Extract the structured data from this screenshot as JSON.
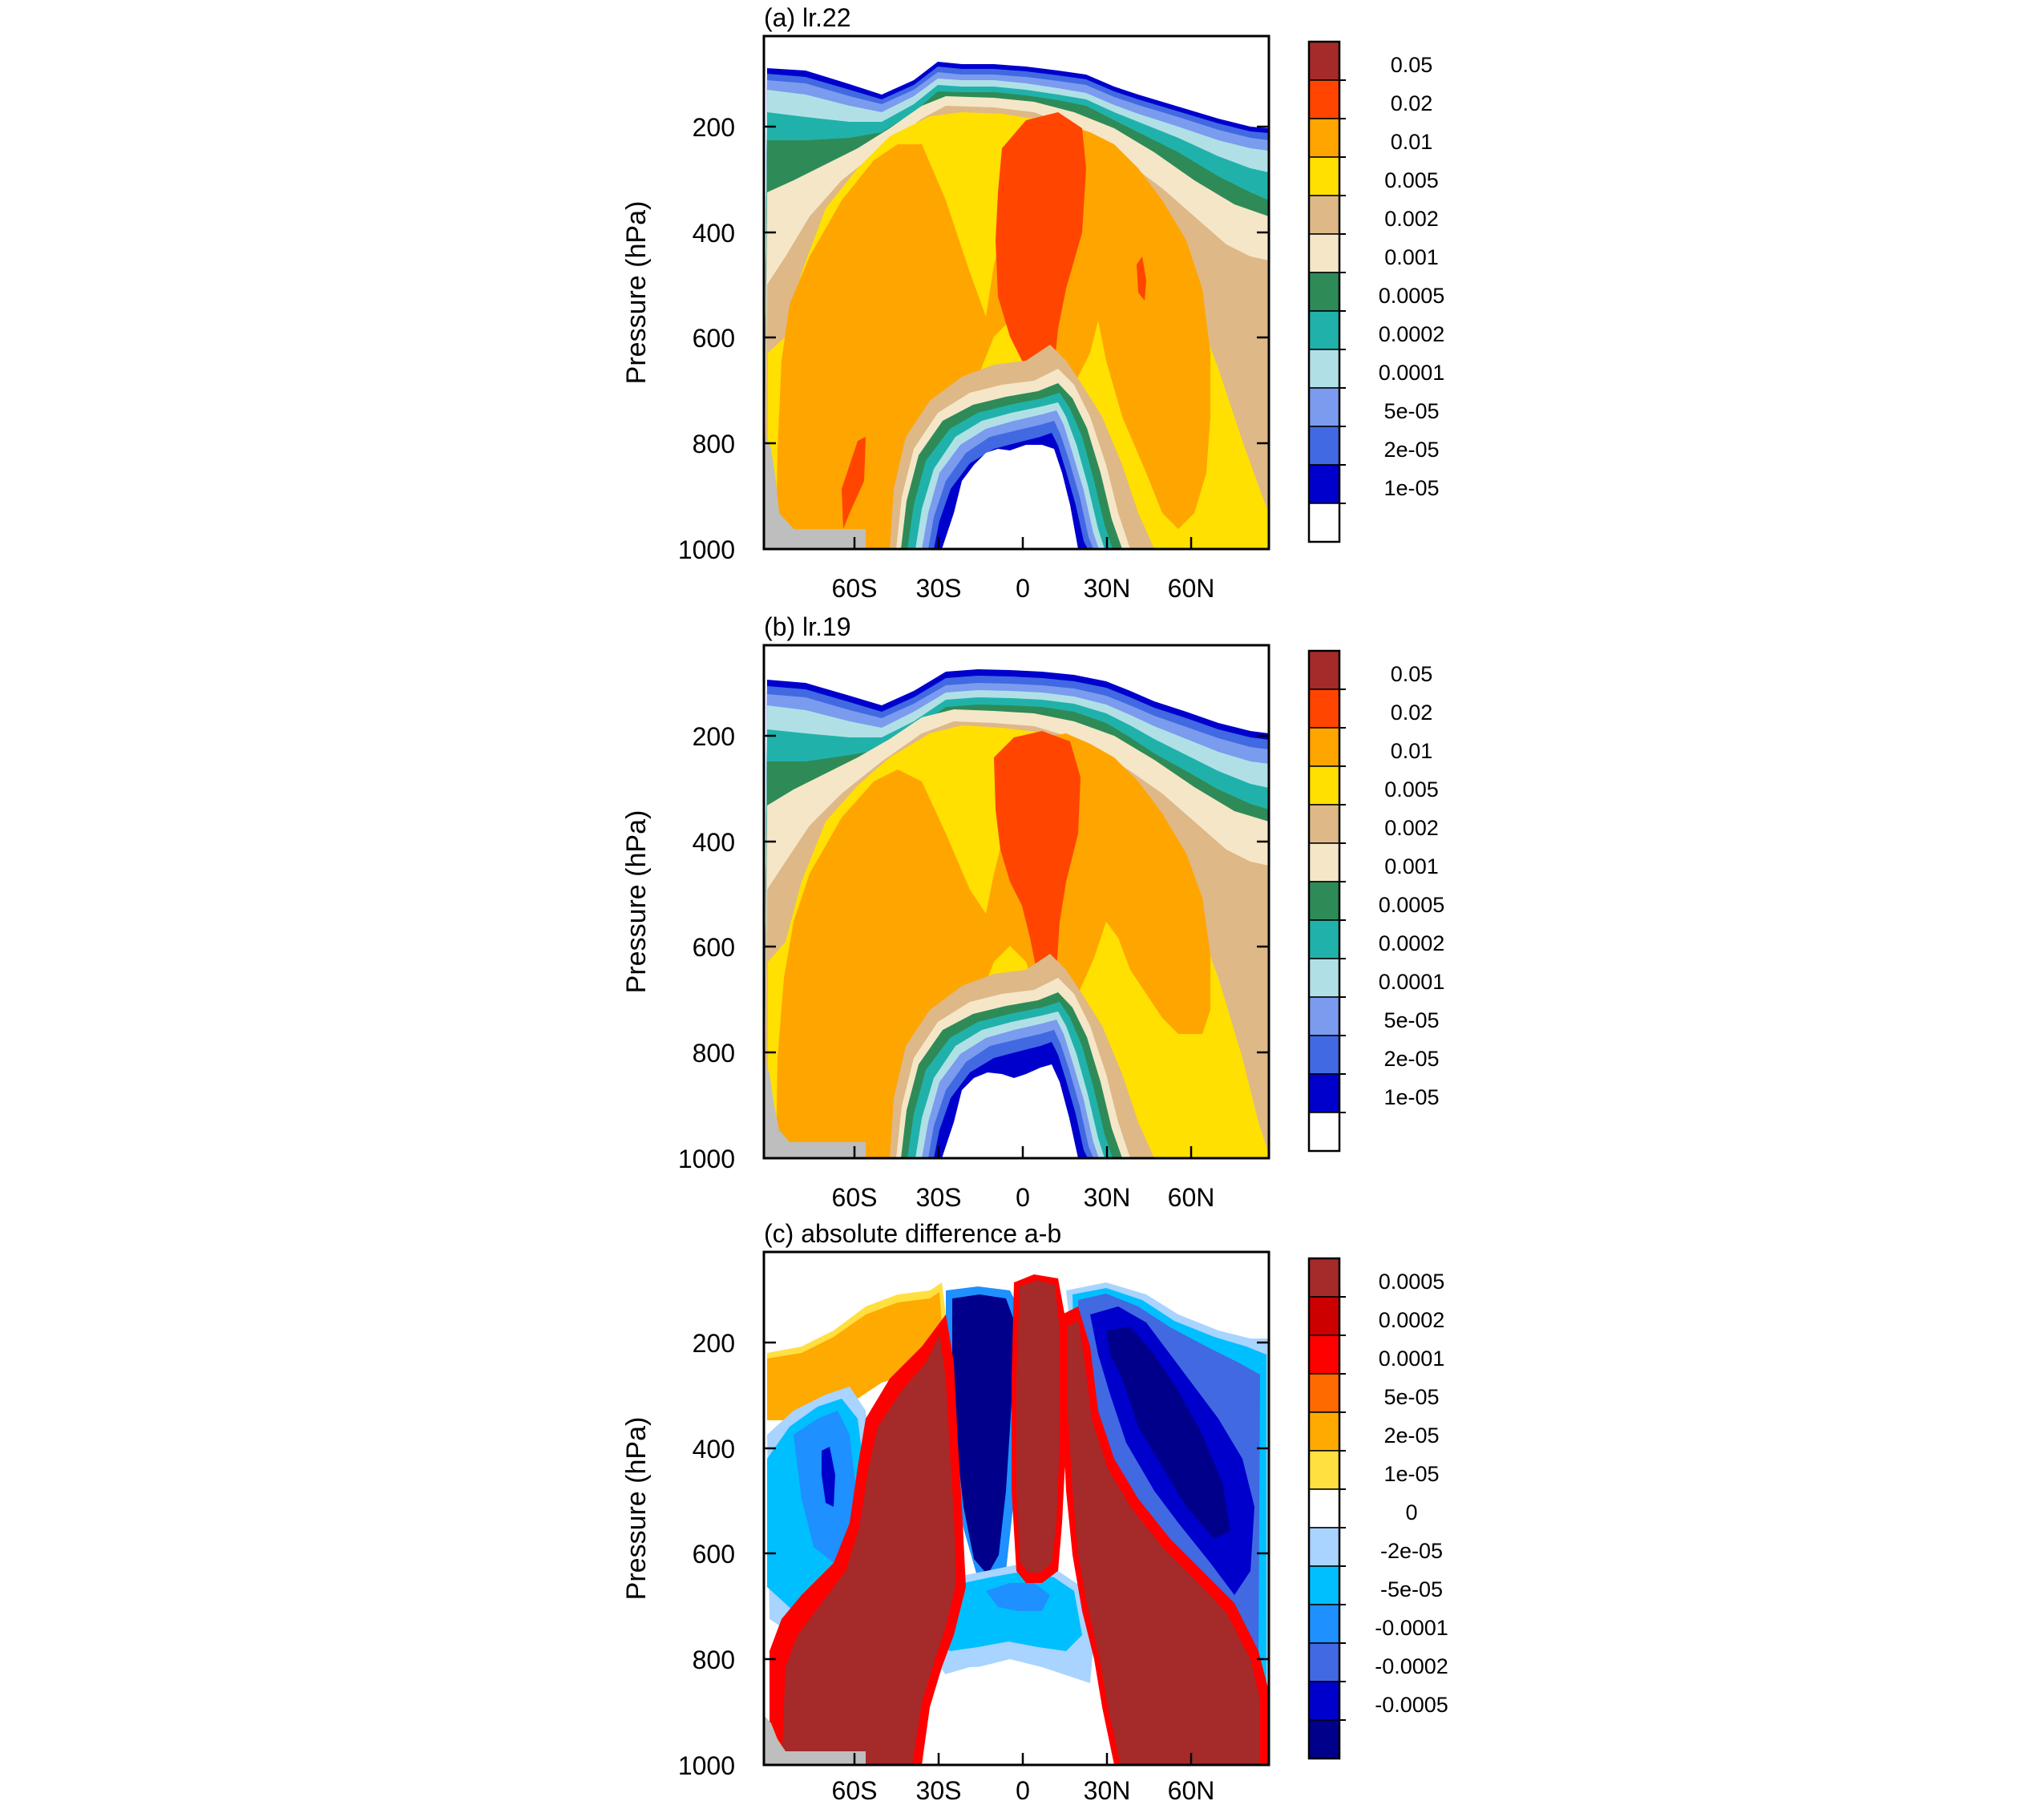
{
  "chart_data": [
    {
      "type": "heatmap",
      "title": "(a) lr.22",
      "ylabel": "Pressure (hPa)",
      "xlabel": "",
      "y_ticks": [
        "200",
        "400",
        "600",
        "800",
        "1000"
      ],
      "x_ticks": [
        "60S",
        "30S",
        "0",
        "30N",
        "60N"
      ],
      "y_range": [
        1000,
        50
      ],
      "x_range": [
        "90S",
        "90N"
      ],
      "colorbar_labels": [
        "0.05",
        "0.02",
        "0.01",
        "0.005",
        "0.002",
        "0.001",
        "0.0005",
        "0.0002",
        "0.0001",
        "5e-05",
        "2e-05",
        "1e-05"
      ],
      "colorbar_colors": [
        "#a52a2a",
        "#ff4500",
        "#ffa500",
        "#ffe000",
        "#deb887",
        "#f5e6c8",
        "#2e8b57",
        "#20b2aa",
        "#b0e0e6",
        "#7b9bee",
        "#4169e1",
        "#0000cd",
        "#ffffff"
      ],
      "max_region_value": "0.02",
      "min_region_value": "1e-05"
    },
    {
      "type": "heatmap",
      "title": "(b) lr.19",
      "ylabel": "Pressure (hPa)",
      "xlabel": "",
      "y_ticks": [
        "200",
        "400",
        "600",
        "800",
        "1000"
      ],
      "x_ticks": [
        "60S",
        "30S",
        "0",
        "30N",
        "60N"
      ],
      "y_range": [
        1000,
        50
      ],
      "x_range": [
        "90S",
        "90N"
      ],
      "colorbar_labels": [
        "0.05",
        "0.02",
        "0.01",
        "0.005",
        "0.002",
        "0.001",
        "0.0005",
        "0.0002",
        "0.0001",
        "5e-05",
        "2e-05",
        "1e-05"
      ],
      "colorbar_colors": [
        "#a52a2a",
        "#ff4500",
        "#ffa500",
        "#ffe000",
        "#deb887",
        "#f5e6c8",
        "#2e8b57",
        "#20b2aa",
        "#b0e0e6",
        "#7b9bee",
        "#4169e1",
        "#0000cd",
        "#ffffff"
      ],
      "max_region_value": "0.02",
      "min_region_value": "1e-05"
    },
    {
      "type": "heatmap",
      "title": "(c) absolute difference a-b",
      "ylabel": "Pressure (hPa)",
      "xlabel": "",
      "y_ticks": [
        "200",
        "400",
        "600",
        "800",
        "1000"
      ],
      "x_ticks": [
        "60S",
        "30S",
        "0",
        "30N",
        "60N"
      ],
      "y_range": [
        1000,
        50
      ],
      "x_range": [
        "90S",
        "90N"
      ],
      "colorbar_labels": [
        "0.0005",
        "0.0002",
        "0.0001",
        "5e-05",
        "2e-05",
        "1e-05",
        "0",
        "-2e-05",
        "-5e-05",
        "-0.0001",
        "-0.0002",
        "-0.0005"
      ],
      "colorbar_colors": [
        "#a52a2a",
        "#cd0000",
        "#ff0000",
        "#ff6a00",
        "#ffaa00",
        "#ffe040",
        "#ffffff",
        "#a8d4ff",
        "#00bfff",
        "#1e90ff",
        "#4169e1",
        "#0000cd",
        "#00008b"
      ]
    }
  ],
  "colors": {
    "missing": "#bebebe",
    "frame": "#000000"
  }
}
